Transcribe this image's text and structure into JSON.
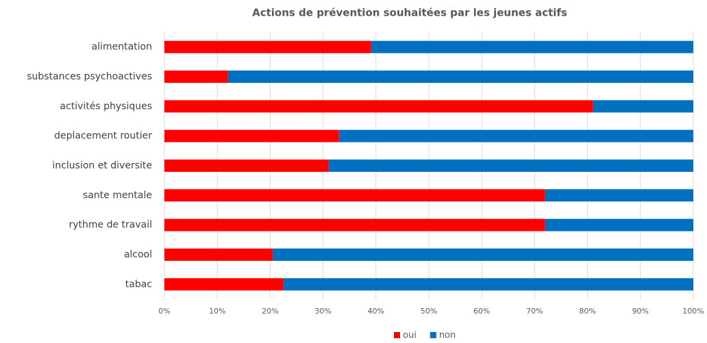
{
  "chart_data": {
    "type": "stacked-bar-horizontal",
    "title": "Actions de prévention souhaitées par les jeunes actifs",
    "categories": [
      "alimentation",
      "substances psychoactives",
      "activités physiques",
      "deplacement routier",
      "inclusion et diversite",
      "sante mentale",
      "rythme de travail",
      "alcool",
      "tabac"
    ],
    "series": [
      {
        "name": "oui",
        "color": "#ff0000",
        "values": [
          39,
          12,
          81,
          33,
          31,
          72,
          72,
          20.5,
          22.5
        ]
      },
      {
        "name": "non",
        "color": "#0070c0",
        "values": [
          61,
          88,
          19,
          67,
          69,
          28,
          28,
          79.5,
          77.5
        ]
      }
    ],
    "xlim": [
      0,
      100
    ],
    "xticks": [
      {
        "value": 0,
        "label": "0%"
      },
      {
        "value": 10,
        "label": "10%"
      },
      {
        "value": 20,
        "label": "20%"
      },
      {
        "value": 30,
        "label": "30%"
      },
      {
        "value": 40,
        "label": "40%"
      },
      {
        "value": 50,
        "label": "50%"
      },
      {
        "value": 60,
        "label": "60%"
      },
      {
        "value": 70,
        "label": "70%"
      },
      {
        "value": 80,
        "label": "80%"
      },
      {
        "value": 90,
        "label": "90%"
      },
      {
        "value": 100,
        "label": "100%"
      }
    ],
    "grid": true,
    "legend": "bottom"
  }
}
